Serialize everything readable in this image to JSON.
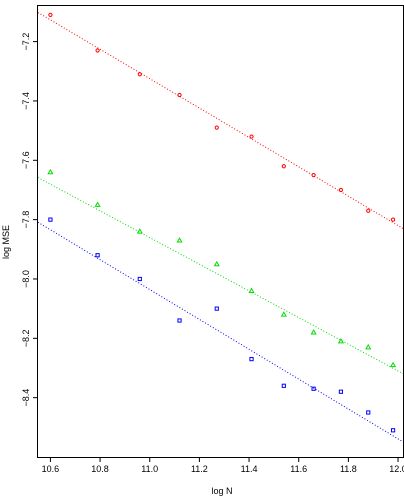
{
  "chart_data": {
    "type": "scatter",
    "title": "",
    "xlabel": "log N",
    "ylabel": "log MSE",
    "xlim": [
      10.55,
      12.02
    ],
    "ylim": [
      -8.6,
      -7.08
    ],
    "x_ticks": [
      10.6,
      10.8,
      11.0,
      11.2,
      11.4,
      11.6,
      11.8,
      12.0
    ],
    "x_tick_labels": [
      "10.6",
      "10.8",
      "11.0",
      "11.2",
      "11.4",
      "11.6",
      "11.8",
      "12.0"
    ],
    "y_ticks": [
      -7.2,
      -7.4,
      -7.6,
      -7.8,
      -8.0,
      -8.2,
      -8.4
    ],
    "y_tick_labels": [
      "−7.2",
      "−7.4",
      "−7.6",
      "−7.8",
      "−8.0",
      "−8.2",
      "−8.4"
    ],
    "grid": false,
    "x": [
      10.6,
      10.79,
      10.96,
      11.12,
      11.27,
      11.41,
      11.54,
      11.66,
      11.77,
      11.88,
      11.98
    ],
    "series": [
      {
        "color": "#ff0000",
        "marker": "circle",
        "values": [
          -7.11,
          -7.23,
          -7.31,
          -7.38,
          -7.49,
          -7.52,
          -7.62,
          -7.65,
          -7.7,
          -7.77,
          -7.8
        ],
        "fit": [
          [
            10.55,
            -7.102
          ],
          [
            12.02,
            -7.83
          ]
        ]
      },
      {
        "color": "#00dd00",
        "marker": "triangle",
        "values": [
          -7.64,
          -7.75,
          -7.84,
          -7.87,
          -7.95,
          -8.04,
          -8.12,
          -8.18,
          -8.21,
          -8.23,
          -8.29
        ],
        "fit": [
          [
            10.55,
            -7.658
          ],
          [
            12.02,
            -8.319
          ]
        ]
      },
      {
        "color": "#0000ff",
        "marker": "square",
        "values": [
          -7.8,
          -7.92,
          -8.0,
          -8.14,
          -8.1,
          -8.27,
          -8.36,
          -8.37,
          -8.38,
          -8.45,
          -8.51
        ],
        "fit": [
          [
            10.55,
            -7.809
          ],
          [
            12.02,
            -8.549
          ]
        ]
      }
    ]
  }
}
